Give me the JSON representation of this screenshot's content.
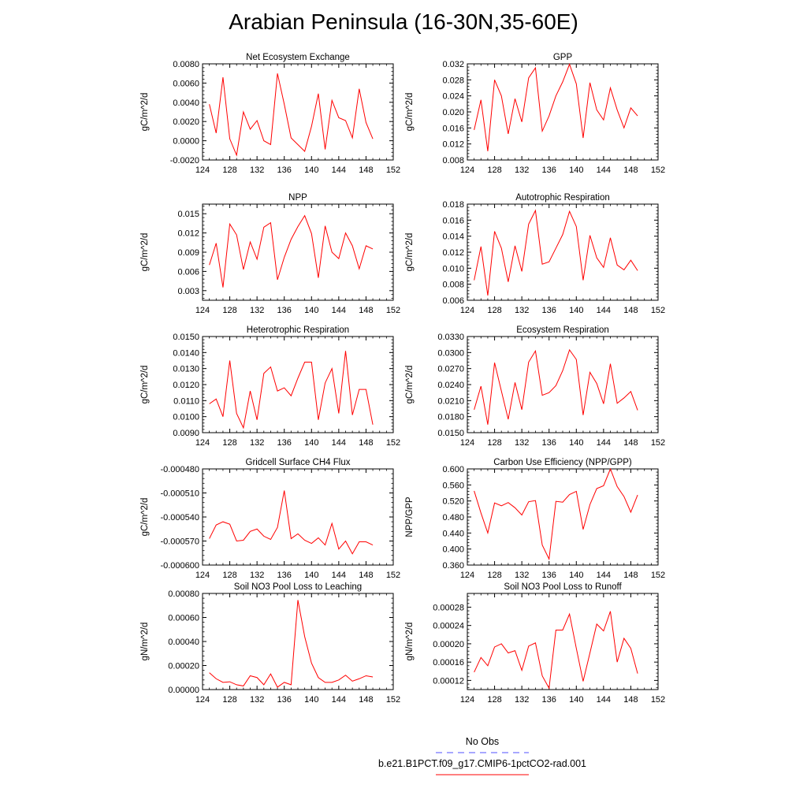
{
  "title": "Arabian Peninsula (16-30N,35-60E)",
  "legend": {
    "entries": [
      {
        "label": "No Obs",
        "color": "#5050ff",
        "dashed": true
      },
      {
        "label": "b.e21.B1PCT.f09_g17.CMIP6-1pctCO2-rad.001",
        "color": "#ff0000",
        "dashed": false
      }
    ]
  },
  "chart_data": [
    {
      "type": "line",
      "title": "Net Ecosystem Exchange",
      "ylabel": "gC/m^2/d",
      "xlim": [
        124,
        152
      ],
      "xticks": [
        "124",
        "128",
        "132",
        "136",
        "140",
        "144",
        "148",
        "152"
      ],
      "ylim": [
        -0.002,
        0.008
      ],
      "yticks": [
        "-0.0020",
        "0.0000",
        "0.0020",
        "0.0040",
        "0.0060",
        "0.0080"
      ],
      "series": [
        {
          "color": "#ff0000",
          "x": [
            125,
            126,
            127,
            128,
            129,
            130,
            131,
            132,
            133,
            134,
            135,
            136,
            137,
            138,
            139,
            140,
            141,
            142,
            143,
            144,
            145,
            146,
            147,
            148,
            149
          ],
          "y": [
            0.0038,
            0.0008,
            0.0066,
            0.0002,
            -0.0015,
            0.003,
            0.0012,
            0.0021,
            0.0,
            -0.0004,
            0.007,
            0.0038,
            0.0003,
            -0.0004,
            -0.0011,
            0.0015,
            0.0049,
            -0.0009,
            0.0042,
            0.0024,
            0.0021,
            0.0003,
            0.0054,
            0.0019,
            0.0002
          ]
        }
      ]
    },
    {
      "type": "line",
      "title": "GPP",
      "ylabel": "gC/m^2/d",
      "xlim": [
        124,
        152
      ],
      "xticks": [
        "124",
        "128",
        "132",
        "136",
        "140",
        "144",
        "148",
        "152"
      ],
      "ylim": [
        0.008,
        0.032
      ],
      "yticks": [
        "0.008",
        "0.012",
        "0.016",
        "0.020",
        "0.024",
        "0.028",
        "0.032"
      ],
      "series": [
        {
          "color": "#ff0000",
          "x": [
            125,
            126,
            127,
            128,
            129,
            130,
            131,
            132,
            133,
            134,
            135,
            136,
            137,
            138,
            139,
            140,
            141,
            142,
            143,
            144,
            145,
            146,
            147,
            148,
            149
          ],
          "y": [
            0.0155,
            0.023,
            0.0102,
            0.028,
            0.024,
            0.0145,
            0.0233,
            0.0175,
            0.0285,
            0.031,
            0.0152,
            0.019,
            0.024,
            0.0275,
            0.0319,
            0.027,
            0.0135,
            0.0273,
            0.0205,
            0.018,
            0.026,
            0.0205,
            0.016,
            0.021,
            0.019
          ]
        }
      ]
    },
    {
      "type": "line",
      "title": "NPP",
      "ylabel": "gC/m^2/d",
      "xlim": [
        124,
        152
      ],
      "xticks": [
        "124",
        "128",
        "132",
        "136",
        "140",
        "144",
        "148",
        "152"
      ],
      "ylim": [
        0.0015,
        0.0165
      ],
      "yticks": [
        "0.003",
        "0.006",
        "0.009",
        "0.012",
        "0.015"
      ],
      "series": [
        {
          "color": "#ff0000",
          "x": [
            125,
            126,
            127,
            128,
            129,
            130,
            131,
            132,
            133,
            134,
            135,
            136,
            137,
            138,
            139,
            140,
            141,
            142,
            143,
            144,
            145,
            146,
            147,
            148,
            149
          ],
          "y": [
            0.007,
            0.0104,
            0.0035,
            0.0134,
            0.0117,
            0.0063,
            0.0106,
            0.0079,
            0.0129,
            0.0136,
            0.0047,
            0.0082,
            0.011,
            0.013,
            0.0147,
            0.0119,
            0.005,
            0.0131,
            0.009,
            0.008,
            0.012,
            0.01,
            0.0064,
            0.01,
            0.0095
          ]
        }
      ]
    },
    {
      "type": "line",
      "title": "Autotrophic Respiration",
      "ylabel": "gC/m^2/d",
      "xlim": [
        124,
        152
      ],
      "xticks": [
        "124",
        "128",
        "132",
        "136",
        "140",
        "144",
        "148",
        "152"
      ],
      "ylim": [
        0.006,
        0.018
      ],
      "yticks": [
        "0.006",
        "0.008",
        "0.010",
        "0.012",
        "0.014",
        "0.016",
        "0.018"
      ],
      "series": [
        {
          "color": "#ff0000",
          "x": [
            125,
            126,
            127,
            128,
            129,
            130,
            131,
            132,
            133,
            134,
            135,
            136,
            137,
            138,
            139,
            140,
            141,
            142,
            143,
            144,
            145,
            146,
            147,
            148,
            149
          ],
          "y": [
            0.0085,
            0.0127,
            0.0066,
            0.0146,
            0.0125,
            0.0083,
            0.0128,
            0.0096,
            0.0155,
            0.0172,
            0.0105,
            0.0108,
            0.0125,
            0.0142,
            0.0171,
            0.0152,
            0.0085,
            0.0141,
            0.0113,
            0.0101,
            0.0138,
            0.0104,
            0.0098,
            0.011,
            0.0097
          ]
        }
      ]
    },
    {
      "type": "line",
      "title": "Heterotrophic Respiration",
      "ylabel": "gC/m^2/d",
      "xlim": [
        124,
        152
      ],
      "xticks": [
        "124",
        "128",
        "132",
        "136",
        "140",
        "144",
        "148",
        "152"
      ],
      "ylim": [
        0.009,
        0.015
      ],
      "yticks": [
        "0.0090",
        "0.0100",
        "0.0110",
        "0.0120",
        "0.0130",
        "0.0140",
        "0.0150"
      ],
      "series": [
        {
          "color": "#ff0000",
          "x": [
            125,
            126,
            127,
            128,
            129,
            130,
            131,
            132,
            133,
            134,
            135,
            136,
            137,
            138,
            139,
            140,
            141,
            142,
            143,
            144,
            145,
            146,
            147,
            148,
            149
          ],
          "y": [
            0.0108,
            0.0111,
            0.01,
            0.0135,
            0.0102,
            0.0093,
            0.0116,
            0.0098,
            0.0127,
            0.0131,
            0.0116,
            0.0118,
            0.0113,
            0.0124,
            0.0134,
            0.0134,
            0.0098,
            0.0121,
            0.013,
            0.0102,
            0.0141,
            0.0101,
            0.0117,
            0.0117,
            0.0095
          ]
        }
      ]
    },
    {
      "type": "line",
      "title": "Ecosystem Respiration",
      "ylabel": "gC/m^2/d",
      "xlim": [
        124,
        152
      ],
      "xticks": [
        "124",
        "128",
        "132",
        "136",
        "140",
        "144",
        "148",
        "152"
      ],
      "ylim": [
        0.015,
        0.033
      ],
      "yticks": [
        "0.0150",
        "0.0180",
        "0.0210",
        "0.0240",
        "0.0270",
        "0.0300",
        "0.0330"
      ],
      "series": [
        {
          "color": "#ff0000",
          "x": [
            125,
            126,
            127,
            128,
            129,
            130,
            131,
            132,
            133,
            134,
            135,
            136,
            137,
            138,
            139,
            140,
            141,
            142,
            143,
            144,
            145,
            146,
            147,
            148,
            149
          ],
          "y": [
            0.0193,
            0.0237,
            0.0165,
            0.0281,
            0.0228,
            0.0175,
            0.0244,
            0.0193,
            0.0282,
            0.0303,
            0.022,
            0.0225,
            0.0238,
            0.0266,
            0.0305,
            0.0287,
            0.0183,
            0.0263,
            0.0242,
            0.0204,
            0.0279,
            0.0205,
            0.0215,
            0.0227,
            0.0192
          ]
        }
      ]
    },
    {
      "type": "line",
      "title": "Gridcell Surface CH4 Flux",
      "ylabel": "gC/m^2/d",
      "xlim": [
        124,
        152
      ],
      "xticks": [
        "124",
        "128",
        "132",
        "136",
        "140",
        "144",
        "148",
        "152"
      ],
      "ylim": [
        -0.0006,
        -0.00048
      ],
      "yticks": [
        "-0.000600",
        "-0.000570",
        "-0.000540",
        "-0.000510",
        "-0.000480"
      ],
      "series": [
        {
          "color": "#ff0000",
          "x": [
            125,
            126,
            127,
            128,
            129,
            130,
            131,
            132,
            133,
            134,
            135,
            136,
            137,
            138,
            139,
            140,
            141,
            142,
            143,
            144,
            145,
            146,
            147,
            148,
            149
          ],
          "y": [
            -0.000567,
            -0.00055,
            -0.000546,
            -0.000549,
            -0.00057,
            -0.000569,
            -0.000558,
            -0.000555,
            -0.000564,
            -0.000568,
            -0.000553,
            -0.000507,
            -0.000567,
            -0.000561,
            -0.000569,
            -0.000573,
            -0.000566,
            -0.000575,
            -0.000548,
            -0.00058,
            -0.00057,
            -0.000586,
            -0.000571,
            -0.000571,
            -0.000575
          ]
        }
      ]
    },
    {
      "type": "line",
      "title": "Carbon Use Efficiency (NPP/GPP)",
      "ylabel": "NPP/GPP",
      "xlim": [
        124,
        152
      ],
      "xticks": [
        "124",
        "128",
        "132",
        "136",
        "140",
        "144",
        "148",
        "152"
      ],
      "ylim": [
        0.36,
        0.6
      ],
      "yticks": [
        "0.360",
        "0.400",
        "0.440",
        "0.480",
        "0.520",
        "0.560",
        "0.600"
      ],
      "series": [
        {
          "color": "#ff0000",
          "x": [
            125,
            126,
            127,
            128,
            129,
            130,
            131,
            132,
            133,
            134,
            135,
            136,
            137,
            138,
            139,
            140,
            141,
            142,
            143,
            144,
            145,
            146,
            147,
            148,
            149
          ],
          "y": [
            0.545,
            0.49,
            0.44,
            0.515,
            0.508,
            0.516,
            0.503,
            0.485,
            0.518,
            0.521,
            0.41,
            0.375,
            0.519,
            0.517,
            0.536,
            0.544,
            0.449,
            0.511,
            0.551,
            0.558,
            0.6,
            0.556,
            0.531,
            0.492,
            0.535
          ]
        }
      ]
    },
    {
      "type": "line",
      "title": "Soil NO3 Pool Loss to Leaching",
      "ylabel": "gN/m^2/d",
      "xlim": [
        124,
        152
      ],
      "xticks": [
        "124",
        "128",
        "132",
        "136",
        "140",
        "144",
        "148",
        "152"
      ],
      "ylim": [
        0,
        0.0008
      ],
      "yticks": [
        "0.00000",
        "0.00020",
        "0.00040",
        "0.00060",
        "0.00080"
      ],
      "series": [
        {
          "color": "#ff0000",
          "x": [
            125,
            126,
            127,
            128,
            129,
            130,
            131,
            132,
            133,
            134,
            135,
            136,
            137,
            138,
            139,
            140,
            141,
            142,
            143,
            144,
            145,
            146,
            147,
            148,
            149
          ],
          "y": [
            0.00014,
            9e-05,
            6e-05,
            6.5e-05,
            4e-05,
            3e-05,
            0.000115,
            0.0001,
            4e-05,
            0.00013,
            2e-05,
            6e-05,
            4e-05,
            0.000745,
            0.00044,
            0.00022,
            0.0001,
            6e-05,
            6e-05,
            8e-05,
            0.00012,
            7e-05,
            9e-05,
            0.000115,
            0.000105
          ]
        }
      ]
    },
    {
      "type": "line",
      "title": "Soil NO3 Pool Loss to Runoff",
      "ylabel": "gN/m^2/d",
      "xlim": [
        124,
        152
      ],
      "xticks": [
        "124",
        "128",
        "132",
        "136",
        "140",
        "144",
        "148",
        "152"
      ],
      "ylim": [
        0.0001,
        0.00031
      ],
      "yticks": [
        "0.00012",
        "0.00016",
        "0.00020",
        "0.00024",
        "0.00028"
      ],
      "series": [
        {
          "color": "#ff0000",
          "x": [
            125,
            126,
            127,
            128,
            129,
            130,
            131,
            132,
            133,
            134,
            135,
            136,
            137,
            138,
            139,
            140,
            141,
            142,
            143,
            144,
            145,
            146,
            147,
            148,
            149
          ],
          "y": [
            0.000138,
            0.00017,
            0.000152,
            0.000193,
            0.0002,
            0.00018,
            0.000185,
            0.000142,
            0.000195,
            0.000202,
            0.00013,
            0.000103,
            0.00023,
            0.00023,
            0.000265,
            0.00019,
            0.000118,
            0.00018,
            0.000243,
            0.000228,
            0.000271,
            0.00016,
            0.000212,
            0.00019,
            0.000135
          ]
        }
      ]
    }
  ]
}
